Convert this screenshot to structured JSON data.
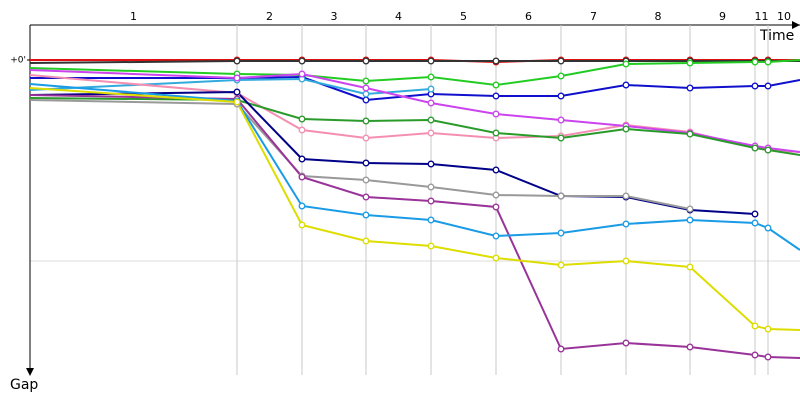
{
  "chart_data": {
    "type": "line",
    "x_label": "Time",
    "y_label": "Gap",
    "x": [
      0,
      207,
      272,
      336,
      401,
      466,
      531,
      596,
      660,
      725,
      738,
      770
    ],
    "xlim": [
      0,
      770
    ],
    "ylim": [
      0,
      315
    ],
    "yticks": [
      {
        "value": 0,
        "label": "+0'"
      }
    ],
    "stages": {
      "labels": [
        "1",
        "2",
        "3",
        "4",
        "5",
        "6",
        "7",
        "8",
        "9",
        "11",
        "10"
      ],
      "ends": [
        207,
        272,
        336,
        401,
        466,
        531,
        596,
        660,
        725,
        738,
        770
      ]
    },
    "series": [
      {
        "color": "#e01010",
        "values": [
          0,
          0,
          0,
          0,
          0,
          2,
          0,
          0,
          0,
          0,
          0,
          0
        ]
      },
      {
        "color": "#333333",
        "values": [
          3,
          1,
          1,
          1,
          1,
          1,
          1,
          1,
          1,
          1,
          1,
          1
        ]
      },
      {
        "color": "#22cc22",
        "values": [
          8,
          14,
          15,
          21,
          17,
          25,
          16,
          4,
          3,
          2,
          2,
          0
        ]
      },
      {
        "color": "#1010cc",
        "values": [
          18,
          18,
          17,
          40,
          34,
          36,
          36,
          25,
          28,
          26,
          26,
          20
        ]
      },
      {
        "color": "#33aadd",
        "values": [
          30,
          20,
          19,
          34,
          29,
          null,
          null,
          null,
          null,
          null,
          null,
          null
        ]
      },
      {
        "color": "#f48fb1",
        "values": [
          15,
          33,
          70,
          78,
          73,
          78,
          76,
          65,
          72,
          88,
          90,
          92
        ]
      },
      {
        "color": "#cc44ee",
        "values": [
          10,
          18,
          14,
          28,
          43,
          54,
          60,
          66,
          73,
          86,
          88,
          92
        ]
      },
      {
        "color": "#2a9a2a",
        "values": [
          38,
          40,
          59,
          61,
          60,
          73,
          78,
          69,
          74,
          88,
          90,
          95
        ]
      },
      {
        "color": "#000088",
        "values": [
          35,
          32,
          99,
          103,
          104,
          110,
          136,
          137,
          150,
          154,
          null,
          null
        ]
      },
      {
        "color": "#999999",
        "values": [
          40,
          44,
          116,
          120,
          127,
          135,
          136,
          136,
          149,
          null,
          null,
          null
        ]
      },
      {
        "color": "#993399",
        "values": [
          35,
          39,
          117,
          137,
          141,
          147,
          289,
          283,
          287,
          295,
          297,
          298
        ]
      },
      {
        "color": "#1a9be6",
        "values": [
          24,
          41,
          146,
          155,
          160,
          176,
          173,
          164,
          160,
          163,
          168,
          190
        ]
      },
      {
        "color": "#dddd00",
        "values": [
          28,
          42,
          165,
          181,
          186,
          198,
          205,
          201,
          207,
          266,
          269,
          270
        ]
      }
    ]
  }
}
